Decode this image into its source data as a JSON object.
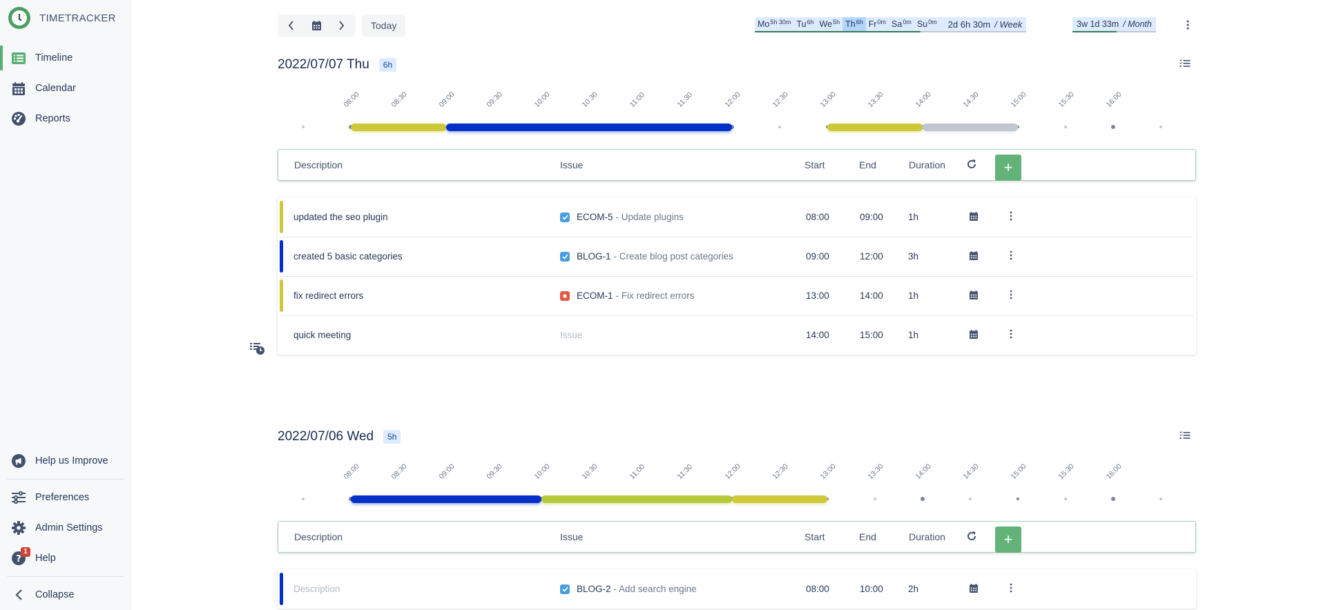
{
  "app": {
    "title": "TIMETRACKER"
  },
  "sidebar": {
    "items": [
      {
        "label": "Timeline",
        "icon": "list-icon",
        "active": true
      },
      {
        "label": "Calendar",
        "icon": "calendar-icon",
        "active": false
      },
      {
        "label": "Reports",
        "icon": "gauge-icon",
        "active": false
      }
    ],
    "bottom": [
      {
        "label": "Help us Improve",
        "icon": "megaphone-icon"
      },
      {
        "label": "Preferences",
        "icon": "sliders-icon"
      },
      {
        "label": "Admin Settings",
        "icon": "gear-icon"
      },
      {
        "label": "Help",
        "icon": "question-icon",
        "badge": "1"
      },
      {
        "label": "Collapse",
        "icon": "chevron-left-icon"
      }
    ]
  },
  "toolbar": {
    "today_label": "Today"
  },
  "week_summary": {
    "days": [
      {
        "label": "Mo",
        "value": "5h 30m"
      },
      {
        "label": "Tu",
        "value": "6h"
      },
      {
        "label": "We",
        "value": "5h"
      },
      {
        "label": "Th",
        "value": "6h",
        "active": true
      },
      {
        "label": "Fr",
        "value": "0m"
      },
      {
        "label": "Sa",
        "value": "0m"
      },
      {
        "label": "Su",
        "value": "0m"
      }
    ],
    "total": "2d 6h 30m",
    "total_unit": "/ Week"
  },
  "month_summary": {
    "total": "3w 1d 33m",
    "unit": "/ Month"
  },
  "table_headers": {
    "description": "Description",
    "issue": "Issue",
    "start": "Start",
    "end": "End",
    "duration": "Duration",
    "add": "+"
  },
  "colors": {
    "yellow": "#cdc93a",
    "blue": "#0030c8",
    "lime": "#b5c93a",
    "gray": "#c1c7d0",
    "green": "#63b27a",
    "task_blue": "#4a9de0",
    "bug_red": "#e05a44"
  },
  "days": [
    {
      "title": "2022/07/07 Thu",
      "badge": "6h",
      "ticks": [
        "08:00",
        "08:30",
        "09:00",
        "09:30",
        "10:00",
        "10:30",
        "11:00",
        "11:30",
        "12:00",
        "12:30",
        "13:00",
        "13:30",
        "14:00",
        "14:30",
        "15:00",
        "15:30",
        "16:00"
      ],
      "entries": [
        {
          "description": "updated the seo plugin",
          "issue_type": "task",
          "issue_key": "ECOM-5",
          "issue_summary": "- Update plugins",
          "start": "08:00",
          "end": "09:00",
          "duration": "1h",
          "color": "#cdc93a"
        },
        {
          "description": "created 5 basic categories",
          "issue_type": "task",
          "issue_key": "BLOG-1",
          "issue_summary": "- Create blog post categories",
          "start": "09:00",
          "end": "12:00",
          "duration": "3h",
          "color": "#0030c8"
        },
        {
          "description": "fix redirect errors",
          "issue_type": "bug",
          "issue_key": "ECOM-1",
          "issue_summary": "- Fix redirect errors",
          "start": "13:00",
          "end": "14:00",
          "duration": "1h",
          "color": "#cdc93a"
        },
        {
          "description": "quick meeting",
          "issue_placeholder": "Issue",
          "start": "14:00",
          "end": "15:00",
          "duration": "1h",
          "color": null
        }
      ]
    },
    {
      "title": "2022/07/06 Wed",
      "badge": "5h",
      "ticks": [
        "08:00",
        "08:30",
        "09:00",
        "09:30",
        "10:00",
        "10:30",
        "11:00",
        "11:30",
        "12:00",
        "12:30",
        "13:00",
        "13:30",
        "14:00",
        "14:30",
        "15:00",
        "15:30",
        "16:00"
      ],
      "entries": [
        {
          "description_placeholder": "Description",
          "issue_type": "task",
          "issue_key": "BLOG-2",
          "issue_summary": "- Add search engine",
          "start": "08:00",
          "end": "10:00",
          "duration": "2h",
          "color": "#0030c8"
        }
      ]
    }
  ]
}
